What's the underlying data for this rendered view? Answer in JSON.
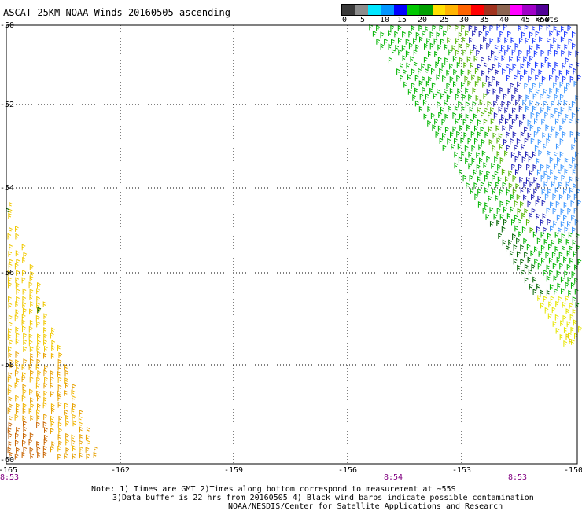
{
  "title": "ASCAT 25KM NOAA Winds 20160505 ascending",
  "scale": {
    "colors": [
      "#3a3a3a",
      "#8c8c8c",
      "#00e6ff",
      "#0096ff",
      "#0000ff",
      "#00c800",
      "#00a000",
      "#ffe000",
      "#ffb400",
      "#ff6400",
      "#ff0000",
      "#a0321e",
      "#8c6450",
      "#ff00ff",
      "#a000c8",
      "#500096"
    ],
    "labels": [
      "0",
      "5",
      "10",
      "15",
      "20",
      "25",
      "30",
      "35",
      "40",
      "45",
      ">50"
    ],
    "unit": "knots"
  },
  "axes": {
    "lat_labels": [
      "-50",
      "-52",
      "-54",
      "-56",
      "-58",
      "-60"
    ],
    "lon_labels": [
      "-165",
      "-162",
      "-159",
      "-156",
      "-153",
      "-150"
    ],
    "times": [
      "8:53",
      "8:54",
      "8:53"
    ]
  },
  "notes": {
    "line1": "Note: 1) Times are GMT 2)Times along bottom correspond to measurement at ~55S",
    "line2": "3)Data buffer is 22 hrs from 20160505 4) Black wind barbs indicate possible contamination",
    "line3": "NOAA/NESDIS/Center for Satellite Applications and Research"
  }
}
